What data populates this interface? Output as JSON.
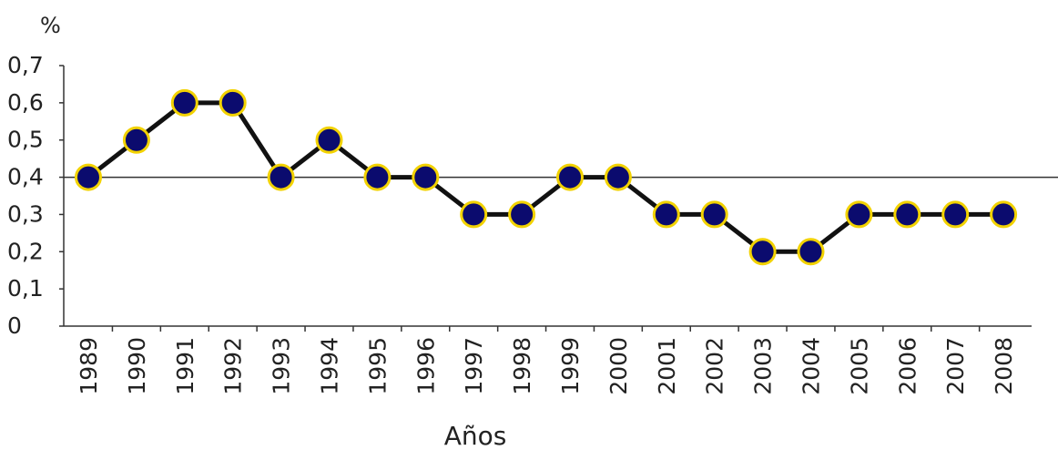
{
  "chart_data": {
    "type": "line",
    "ylabel": "%",
    "xlabel": "Años",
    "ylim": [
      0,
      0.7
    ],
    "yticks": [
      "0",
      "0,1",
      "0,2",
      "0,3",
      "0,4",
      "0,5",
      "0,6",
      "0,7"
    ],
    "categories": [
      "1989",
      "1990",
      "1991",
      "1992",
      "1993",
      "1994",
      "1995",
      "1996",
      "1997",
      "1998",
      "1999",
      "2000",
      "2001",
      "2002",
      "2003",
      "2004",
      "2005",
      "2006",
      "2007",
      "2008"
    ],
    "series": [
      {
        "values": [
          0.4,
          0.5,
          0.6,
          0.6,
          0.4,
          0.5,
          0.4,
          0.4,
          0.3,
          0.3,
          0.4,
          0.4,
          0.3,
          0.3,
          0.2,
          0.2,
          0.3,
          0.3,
          0.3,
          0.3
        ]
      }
    ],
    "reference_line": 0.4,
    "grid": false,
    "colors": {
      "line": "#111111",
      "marker_fill": "#0b0b6e",
      "marker_edge": "#f2d200",
      "axis": "#333333"
    }
  }
}
